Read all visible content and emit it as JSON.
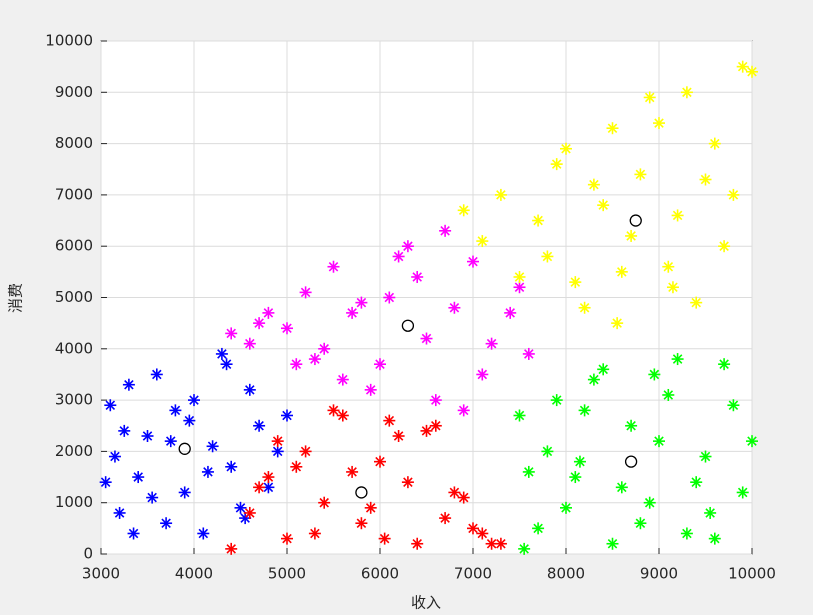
{
  "chart_data": {
    "type": "scatter",
    "xlabel": "收入",
    "ylabel": "消费",
    "xlim": [
      3000,
      10000
    ],
    "ylim": [
      0,
      10000
    ],
    "xticks": [
      3000,
      4000,
      5000,
      6000,
      7000,
      8000,
      9000,
      10000
    ],
    "yticks": [
      0,
      1000,
      2000,
      3000,
      4000,
      5000,
      6000,
      7000,
      8000,
      9000,
      10000
    ],
    "grid": true,
    "series": [
      {
        "color": "#0000ff",
        "marker": "asterisk",
        "x": [
          3100,
          3200,
          3300,
          3400,
          3500,
          3600,
          3700,
          3800,
          3900,
          4000,
          4100,
          4200,
          4300,
          4400,
          4500,
          4600,
          4700,
          4800,
          4900,
          5000,
          3150,
          3350,
          3550,
          3750,
          3950,
          4150,
          4350,
          4550,
          3050,
          3250
        ],
        "values": [
          2900,
          800,
          3300,
          1500,
          2300,
          3500,
          600,
          2800,
          1200,
          3000,
          400,
          2100,
          3900,
          1700,
          900,
          3200,
          2500,
          1300,
          2000,
          2700,
          1900,
          400,
          1100,
          2200,
          2600,
          1600,
          3700,
          700,
          1400,
          2400
        ]
      },
      {
        "color": "#ff0000",
        "marker": "asterisk",
        "x": [
          4400,
          4600,
          4800,
          5000,
          5200,
          5400,
          5600,
          5800,
          6000,
          6200,
          6400,
          6600,
          6800,
          7000,
          7200,
          4700,
          4900,
          5300,
          5500,
          5700,
          5900,
          6100,
          6300,
          6500,
          6700,
          6900,
          7100,
          7300,
          5100,
          6050
        ],
        "values": [
          100,
          800,
          1500,
          300,
          2000,
          1000,
          2700,
          600,
          1800,
          2300,
          200,
          2500,
          1200,
          500,
          200,
          1300,
          2200,
          400,
          2800,
          1600,
          900,
          2600,
          1400,
          2400,
          700,
          1100,
          400,
          200,
          1700,
          300
        ]
      },
      {
        "color": "#ff00ff",
        "marker": "asterisk",
        "x": [
          4400,
          4600,
          4800,
          5000,
          5200,
          5400,
          5600,
          5800,
          6000,
          6200,
          6400,
          6600,
          6800,
          7000,
          7200,
          7400,
          7600,
          4700,
          5100,
          5500,
          5900,
          6300,
          6700,
          7100,
          7500,
          5300,
          5700,
          6500,
          6900,
          6100
        ],
        "values": [
          4300,
          4100,
          4700,
          4400,
          5100,
          4000,
          3400,
          4900,
          3700,
          5800,
          5400,
          3000,
          4800,
          5700,
          4100,
          4700,
          3900,
          4500,
          3700,
          5600,
          3200,
          6000,
          6300,
          3500,
          5200,
          3800,
          4700,
          4200,
          2800,
          5000
        ]
      },
      {
        "color": "#ffff00",
        "marker": "asterisk",
        "x": [
          6900,
          7100,
          7300,
          7500,
          7700,
          7900,
          8100,
          8300,
          8500,
          8700,
          8900,
          9100,
          9300,
          9500,
          9700,
          9900,
          7800,
          8000,
          8200,
          8400,
          8600,
          8800,
          9000,
          9200,
          9400,
          9600,
          9800,
          10000,
          8550,
          9150
        ],
        "values": [
          6700,
          6100,
          7000,
          5400,
          6500,
          7600,
          5300,
          7200,
          8300,
          6200,
          8900,
          5600,
          9000,
          7300,
          6000,
          9500,
          5800,
          7900,
          4800,
          6800,
          5500,
          7400,
          8400,
          6600,
          4900,
          8000,
          7000,
          9400,
          4500,
          5200
        ]
      },
      {
        "color": "#00ff00",
        "marker": "asterisk",
        "x": [
          7500,
          7700,
          7900,
          8100,
          8300,
          8500,
          8700,
          8900,
          9100,
          9300,
          9500,
          9700,
          9900,
          10000,
          7600,
          7800,
          8000,
          8200,
          8400,
          8600,
          8800,
          9000,
          9200,
          9400,
          9600,
          9800,
          8150,
          8950,
          9550,
          7550
        ],
        "values": [
          2700,
          500,
          3000,
          1500,
          3400,
          200,
          2500,
          1000,
          3100,
          400,
          1900,
          3700,
          1200,
          2200,
          1600,
          2000,
          900,
          2800,
          3600,
          1300,
          600,
          2200,
          3800,
          1400,
          300,
          2900,
          1800,
          3500,
          800,
          100
        ]
      },
      {
        "color": "#000000",
        "marker": "circle",
        "x": [
          3900,
          5800,
          6300,
          8750,
          8700
        ],
        "values": [
          2050,
          1200,
          4450,
          6500,
          1800
        ]
      }
    ]
  }
}
